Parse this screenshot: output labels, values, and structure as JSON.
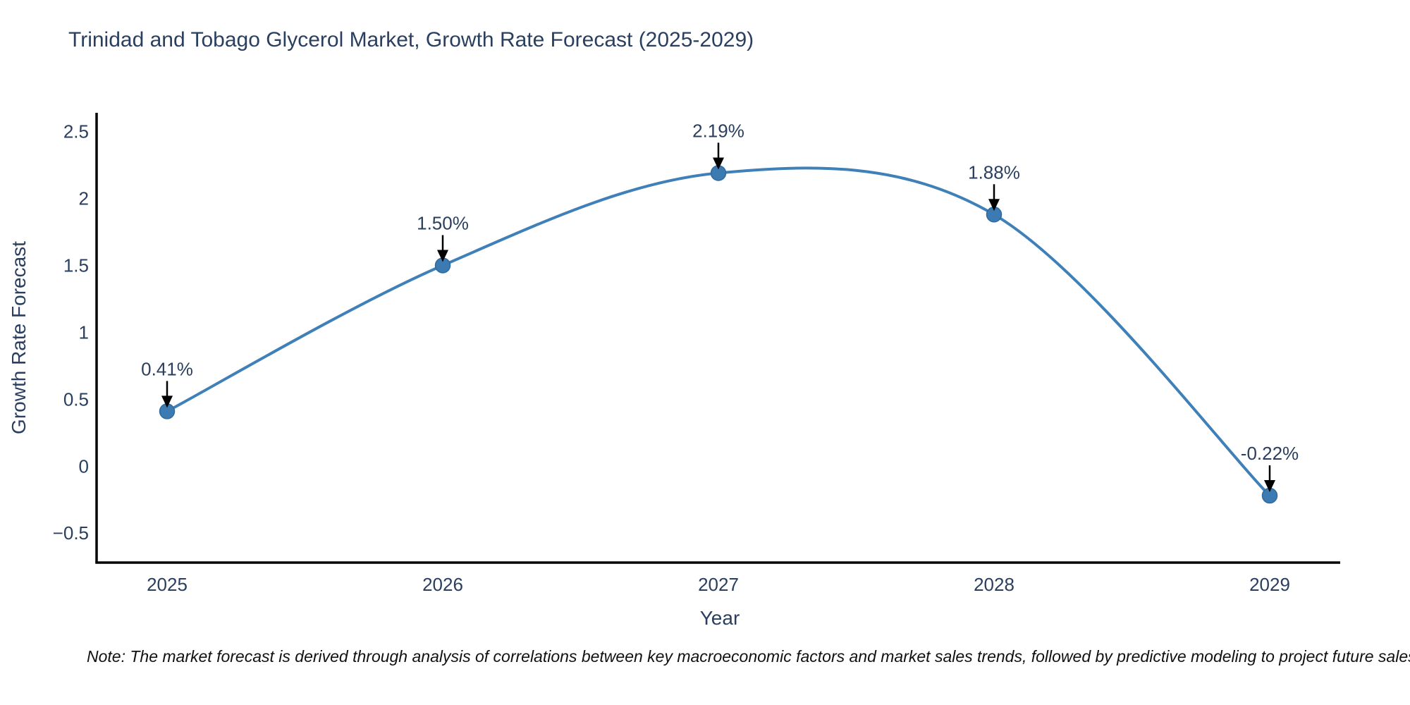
{
  "chart_data": {
    "type": "line",
    "title": "Trinidad and Tobago Glycerol Market, Growth Rate Forecast (2025-2029)",
    "xlabel": "Year",
    "ylabel": "Growth Rate Forecast",
    "x": [
      2025,
      2026,
      2027,
      2028,
      2029
    ],
    "y": [
      0.41,
      1.5,
      2.19,
      1.88,
      -0.22
    ],
    "point_labels": [
      "0.41%",
      "1.50%",
      "2.19%",
      "1.88%",
      "-0.22%"
    ],
    "x_tick_labels": [
      "2025",
      "2026",
      "2027",
      "2028",
      "2029"
    ],
    "y_ticks": [
      -0.5,
      0,
      0.5,
      1,
      1.5,
      2,
      2.5
    ],
    "y_tick_labels": [
      "−0.5",
      "0",
      "0.5",
      "1",
      "1.5",
      "2",
      "2.5"
    ],
    "ylim": [
      -0.72,
      2.64
    ],
    "line_shape": "spline",
    "grid": false,
    "legend": "none",
    "colors": {
      "line": "#4080b8",
      "marker_fill": "#3c7ab2",
      "marker_edge": "#2e6a9e",
      "axis_line": "#000000",
      "text": "#2a3f5f",
      "annotation_arrow": "#000000"
    }
  },
  "note": {
    "text": "Note: The market forecast is derived through analysis of correlations between key macroeconomic factors and market sales trends, followed by predictive modeling to project future sales"
  }
}
